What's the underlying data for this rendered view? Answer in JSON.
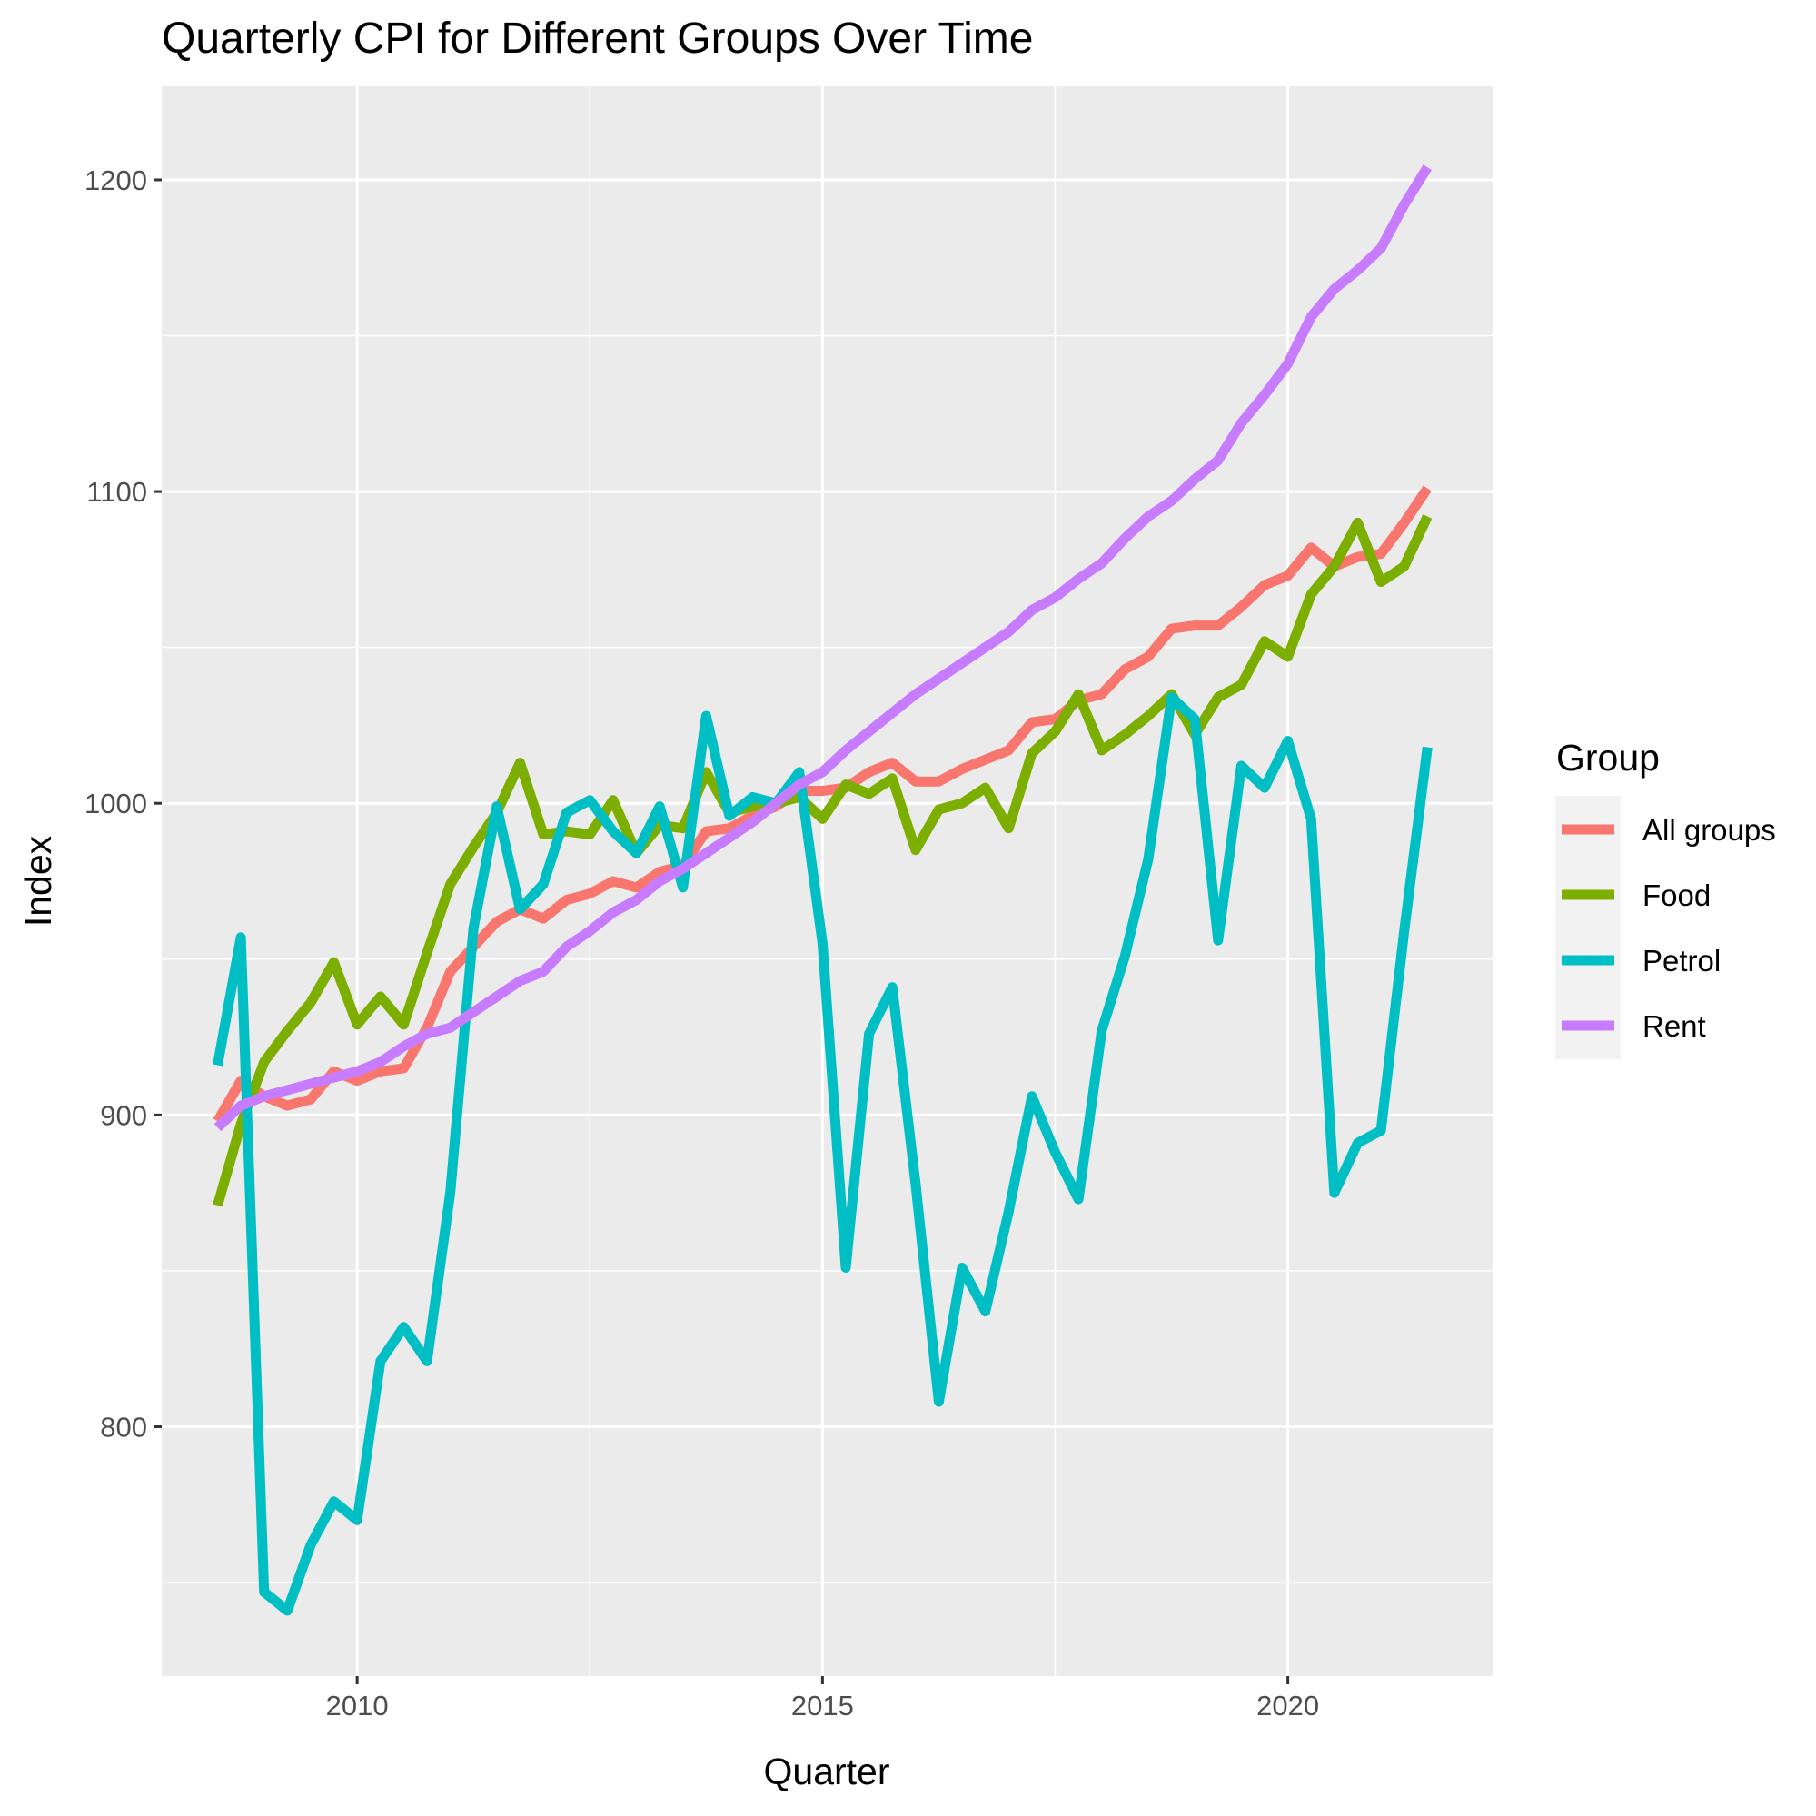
{
  "chart_data": {
    "type": "line",
    "title": "Quarterly CPI for Different Groups Over Time",
    "xlabel": "Quarter",
    "ylabel": "Index",
    "xlim": [
      2007.9,
      2022.2
    ],
    "ylim": [
      720,
      1230
    ],
    "x_ticks": [
      2010,
      2015,
      2020
    ],
    "x_tick_labels": [
      "2010",
      "2015",
      "2020"
    ],
    "y_ticks": [
      800,
      900,
      1000,
      1100,
      1200
    ],
    "y_tick_labels": [
      "800",
      "900",
      "1000",
      "1100",
      "1200"
    ],
    "grid": true,
    "legend": {
      "title": "Group",
      "position": "right"
    },
    "x": [
      2008.5,
      2008.75,
      2009.0,
      2009.25,
      2009.5,
      2009.75,
      2010.0,
      2010.25,
      2010.5,
      2010.75,
      2011.0,
      2011.25,
      2011.5,
      2011.75,
      2012.0,
      2012.25,
      2012.5,
      2012.75,
      2013.0,
      2013.25,
      2013.5,
      2013.75,
      2014.0,
      2014.25,
      2014.5,
      2014.75,
      2015.0,
      2015.25,
      2015.5,
      2015.75,
      2016.0,
      2016.25,
      2016.5,
      2016.75,
      2017.0,
      2017.25,
      2017.5,
      2017.75,
      2018.0,
      2018.25,
      2018.5,
      2018.75,
      2019.0,
      2019.25,
      2019.5,
      2019.75,
      2020.0,
      2020.25,
      2020.5,
      2020.75,
      2021.0,
      2021.25,
      2021.5
    ],
    "series": [
      {
        "name": "All groups",
        "color": "#F8766D",
        "values": [
          898,
          911,
          906,
          903,
          905,
          914,
          911,
          914,
          915,
          928,
          946,
          954,
          962,
          966,
          963,
          969,
          971,
          975,
          973,
          978,
          980,
          991,
          992,
          996,
          999,
          1004,
          1004,
          1005,
          1010,
          1013,
          1007,
          1007,
          1011,
          1014,
          1017,
          1026,
          1027,
          1033,
          1035,
          1043,
          1047,
          1056,
          1057,
          1057,
          1063,
          1070,
          1073,
          1082,
          1076,
          1079,
          1080,
          1090,
          1101
        ]
      },
      {
        "name": "Food",
        "color": "#7CAE00",
        "values": [
          871,
          897,
          917,
          927,
          936,
          949,
          929,
          938,
          929,
          952,
          974,
          986,
          997,
          1013,
          990,
          991,
          990,
          1001,
          984,
          993,
          992,
          1010,
          997,
          999,
          1000,
          1002,
          995,
          1006,
          1003,
          1008,
          985,
          998,
          1000,
          1005,
          992,
          1016,
          1023,
          1035,
          1017,
          1022,
          1028,
          1035,
          1022,
          1034,
          1038,
          1052,
          1047,
          1067,
          1076,
          1090,
          1071,
          1076,
          1092
        ]
      },
      {
        "name": "Petrol",
        "color": "#00BFC4",
        "values": [
          916,
          957,
          747,
          741,
          762,
          776,
          770,
          821,
          832,
          821,
          875,
          960,
          999,
          966,
          974,
          997,
          1001,
          991,
          984,
          999,
          973,
          1028,
          996,
          1002,
          1000,
          1010,
          955,
          851,
          926,
          941,
          878,
          808,
          851,
          837,
          869,
          906,
          888,
          873,
          927,
          951,
          982,
          1034,
          1027,
          956,
          1012,
          1005,
          1020,
          995,
          875,
          891,
          895,
          959,
          1018
        ]
      },
      {
        "name": "Rent",
        "color": "#C77CFF",
        "values": [
          896,
          903,
          906,
          908,
          910,
          912,
          914,
          917,
          922,
          926,
          928,
          933,
          938,
          943,
          946,
          954,
          959,
          965,
          969,
          975,
          979,
          984,
          989,
          994,
          1000,
          1006,
          1010,
          1017,
          1023,
          1029,
          1035,
          1040,
          1045,
          1050,
          1055,
          1062,
          1066,
          1072,
          1077,
          1085,
          1092,
          1097,
          1104,
          1110,
          1122,
          1131,
          1141,
          1156,
          1165,
          1171,
          1178,
          1192,
          1204
        ]
      }
    ]
  }
}
